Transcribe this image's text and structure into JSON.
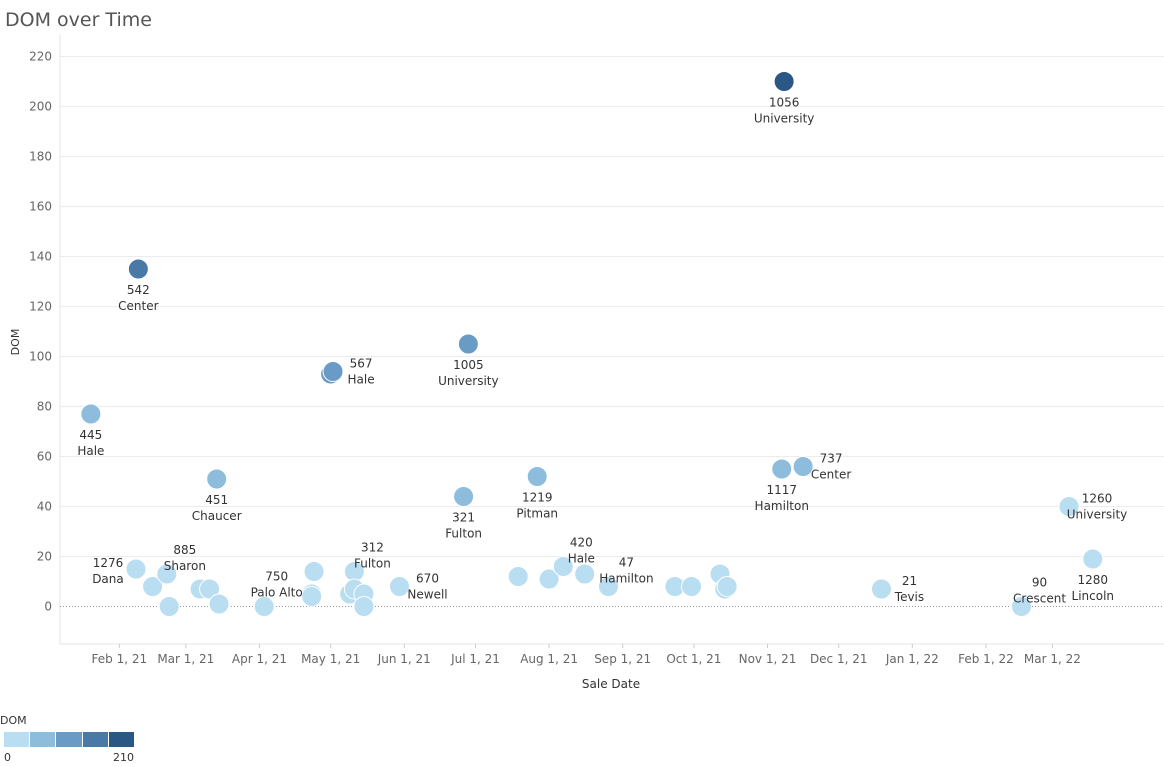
{
  "chart_data": {
    "type": "scatter",
    "title": "DOM over Time",
    "xlabel": "Sale Date",
    "ylabel": "DOM",
    "ylim": [
      -15,
      225
    ],
    "yticks": [
      0,
      20,
      40,
      60,
      80,
      100,
      120,
      140,
      160,
      180,
      200,
      220
    ],
    "xlim_days": [
      -25,
      440
    ],
    "xticks": [
      {
        "day": 0,
        "label": "Feb 1, 21"
      },
      {
        "day": 28,
        "label": "Mar 1, 21"
      },
      {
        "day": 59,
        "label": "Apr 1, 21"
      },
      {
        "day": 89,
        "label": "May 1, 21"
      },
      {
        "day": 120,
        "label": "Jun 1, 21"
      },
      {
        "day": 150,
        "label": "Jul 1, 21"
      },
      {
        "day": 181,
        "label": "Aug 1, 21"
      },
      {
        "day": 212,
        "label": "Sep 1, 21"
      },
      {
        "day": 242,
        "label": "Oct 1, 21"
      },
      {
        "day": 273,
        "label": "Nov 1, 21"
      },
      {
        "day": 303,
        "label": "Dec 1, 21"
      },
      {
        "day": 334,
        "label": "Jan 1, 22"
      },
      {
        "day": 365,
        "label": "Feb 1, 22"
      },
      {
        "day": 393,
        "label": "Mar 1, 22"
      }
    ],
    "color_scale": {
      "min": 0,
      "max": 210,
      "colors": [
        "#b9ddf1",
        "#8ebcdd",
        "#6a9bc6",
        "#4a79a8",
        "#2a5783"
      ]
    },
    "points": [
      {
        "day": -12,
        "dom": 77,
        "id": "445",
        "street": "Hale",
        "label_pos": "below"
      },
      {
        "day": 8,
        "dom": 135,
        "id": "542",
        "street": "Center",
        "label_pos": "below"
      },
      {
        "day": 7,
        "dom": 15,
        "id": "1276",
        "street": "Dana",
        "label_pos": "left"
      },
      {
        "day": 14,
        "dom": 8
      },
      {
        "day": 20,
        "dom": 13,
        "id": "885",
        "street": "Sharon",
        "label_pos": "above-right"
      },
      {
        "day": 21,
        "dom": 0
      },
      {
        "day": 34,
        "dom": 7
      },
      {
        "day": 38,
        "dom": 7
      },
      {
        "day": 41,
        "dom": 51,
        "id": "451",
        "street": "Chaucer",
        "label_pos": "below"
      },
      {
        "day": 42,
        "dom": 1
      },
      {
        "day": 61,
        "dom": 0
      },
      {
        "day": 81,
        "dom": 5
      },
      {
        "day": 81,
        "dom": 4,
        "id": "750",
        "street": "Palo Alto",
        "label_pos": "above-left"
      },
      {
        "day": 82,
        "dom": 14
      },
      {
        "day": 89,
        "dom": 93
      },
      {
        "day": 90,
        "dom": 94,
        "id": "567",
        "street": "Hale",
        "label_pos": "right"
      },
      {
        "day": 97,
        "dom": 5
      },
      {
        "day": 99,
        "dom": 14,
        "id": "312",
        "street": "Fulton",
        "label_pos": "above-right"
      },
      {
        "day": 99,
        "dom": 7
      },
      {
        "day": 103,
        "dom": 5
      },
      {
        "day": 103,
        "dom": 0
      },
      {
        "day": 118,
        "dom": 8,
        "id": "670",
        "street": "Newell",
        "label_pos": "right"
      },
      {
        "day": 145,
        "dom": 44,
        "id": "321",
        "street": "Fulton",
        "label_pos": "below"
      },
      {
        "day": 147,
        "dom": 105,
        "id": "1005",
        "street": "University",
        "label_pos": "below"
      },
      {
        "day": 168,
        "dom": 12
      },
      {
        "day": 176,
        "dom": 52,
        "id": "1219",
        "street": "Pitman",
        "label_pos": "below"
      },
      {
        "day": 181,
        "dom": 11
      },
      {
        "day": 187,
        "dom": 16,
        "id": "420",
        "street": "Hale",
        "label_pos": "above-right"
      },
      {
        "day": 196,
        "dom": 13
      },
      {
        "day": 206,
        "dom": 8,
        "id": "47",
        "street": "Hamilton",
        "label_pos": "above-right"
      },
      {
        "day": 234,
        "dom": 8
      },
      {
        "day": 241,
        "dom": 8
      },
      {
        "day": 253,
        "dom": 13
      },
      {
        "day": 255,
        "dom": 7
      },
      {
        "day": 256,
        "dom": 8
      },
      {
        "day": 280,
        "dom": 210,
        "id": "1056",
        "street": "University",
        "label_pos": "below"
      },
      {
        "day": 279,
        "dom": 55,
        "id": "1117",
        "street": "Hamilton",
        "label_pos": "below"
      },
      {
        "day": 288,
        "dom": 56,
        "id": "737",
        "street": "Center",
        "label_pos": "right"
      },
      {
        "day": 321,
        "dom": 7,
        "id": "21",
        "street": "Tevis",
        "label_pos": "right"
      },
      {
        "day": 380,
        "dom": 0,
        "id": "90",
        "street": "Crescent",
        "label_pos": "above-right"
      },
      {
        "day": 400,
        "dom": 40,
        "id": "1260",
        "street": "University",
        "label_pos": "right"
      },
      {
        "day": 410,
        "dom": 19,
        "id": "1280",
        "street": "Lincoln",
        "label_pos": "below"
      }
    ]
  },
  "legend": {
    "title": "DOM",
    "min_label": "0",
    "max_label": "210"
  }
}
